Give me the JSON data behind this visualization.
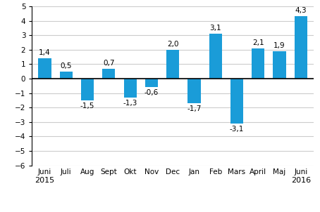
{
  "categories": [
    "Juni",
    "Juli",
    "Aug",
    "Sept",
    "Okt",
    "Nov",
    "Dec",
    "Jan",
    "Feb",
    "Mars",
    "April",
    "Maj",
    "Juni"
  ],
  "values": [
    1.4,
    0.5,
    -1.5,
    0.7,
    -1.3,
    -0.6,
    2.0,
    -1.7,
    3.1,
    -3.1,
    2.1,
    1.9,
    4.3
  ],
  "bar_color": "#1a9cd8",
  "ylim": [
    -6,
    5
  ],
  "yticks": [
    -6,
    -5,
    -4,
    -3,
    -2,
    -1,
    0,
    1,
    2,
    3,
    4,
    5
  ],
  "label_fontsize": 7.5,
  "value_fontsize": 7.5,
  "year_fontsize": 8,
  "background_color": "#ffffff",
  "grid_color": "#cccccc"
}
